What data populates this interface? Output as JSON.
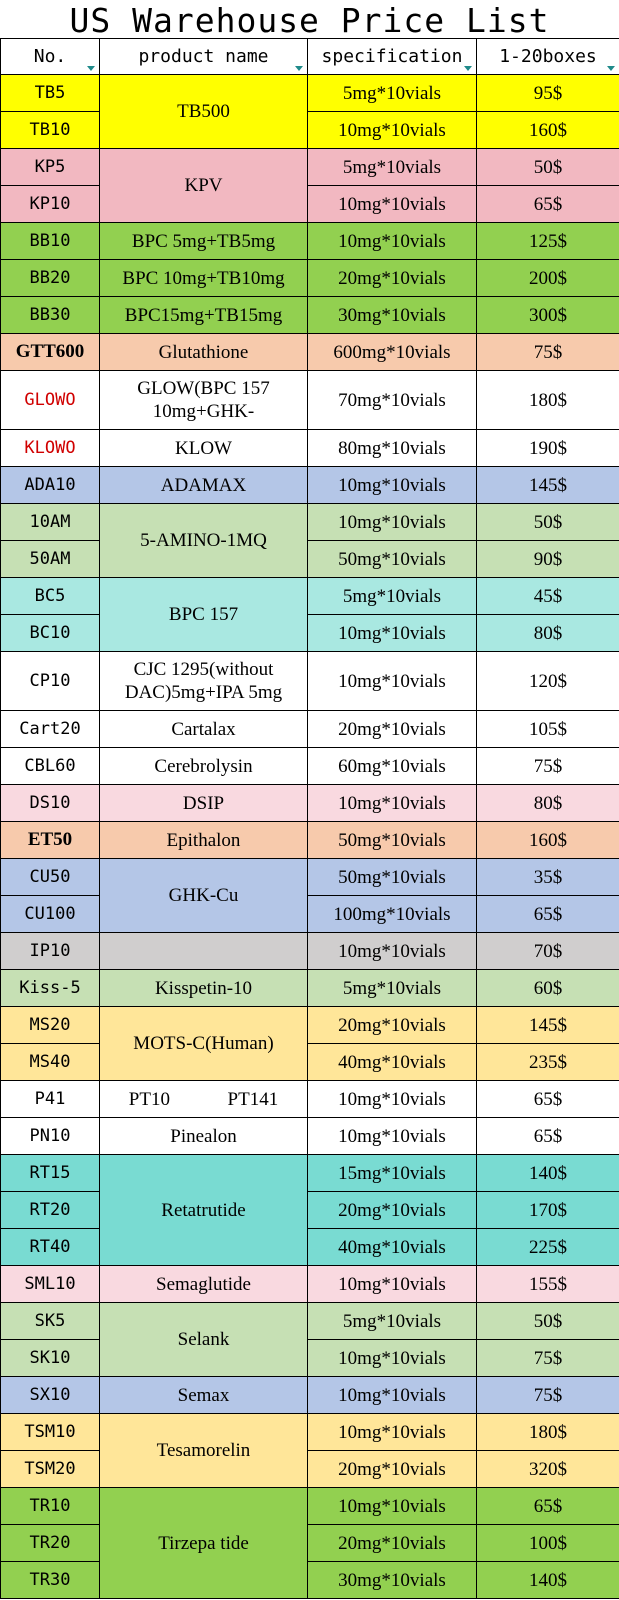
{
  "title": "US Warehouse Price List",
  "headers": {
    "no": "No.",
    "product": "product name",
    "spec": "specification",
    "price": "1-20boxes"
  },
  "colors": {
    "yellow": "#ffff00",
    "pink": "#f2b8c1",
    "green": "#92d050",
    "peach": "#f7caac",
    "white": "#ffffff",
    "blue": "#b4c6e7",
    "lightgreen": "#c6e0b4",
    "cyan": "#a9e8e1",
    "lightpink": "#f9d9e0",
    "gray": "#d0cece",
    "gold": "#ffe699",
    "teal": "#79dbd2",
    "red_text": "#d00000"
  },
  "rows": [
    {
      "no": "TB5",
      "product": "TB500",
      "spec": "5mg*10vials",
      "price": "95$"
    },
    {
      "no": "TB10",
      "spec": "10mg*10vials",
      "price": "160$"
    },
    {
      "no": "KP5",
      "product": "KPV",
      "spec": "5mg*10vials",
      "price": "50$"
    },
    {
      "no": "KP10",
      "spec": "10mg*10vials",
      "price": "65$"
    },
    {
      "no": "BB10",
      "product": "BPC 5mg+TB5mg",
      "spec": "10mg*10vials",
      "price": "125$"
    },
    {
      "no": "BB20",
      "product": "BPC 10mg+TB10mg",
      "spec": "20mg*10vials",
      "price": "200$"
    },
    {
      "no": "BB30",
      "product": "BPC15mg+TB15mg",
      "spec": "30mg*10vials",
      "price": "300$"
    },
    {
      "no": "GTT600",
      "product": "Glutathione",
      "spec": "600mg*10vials",
      "price": "75$"
    },
    {
      "no": "GLOWO",
      "product": "GLOW(BPC 157 10mg+GHK-",
      "spec": "70mg*10vials",
      "price": "180$"
    },
    {
      "no": "KLOWO",
      "product": "KLOW",
      "spec": "80mg*10vials",
      "price": "190$"
    },
    {
      "no": "ADA10",
      "product": "ADAMAX",
      "spec": "10mg*10vials",
      "price": "145$"
    },
    {
      "no": "10AM",
      "product": "5-AMINO-1MQ",
      "spec": "10mg*10vials",
      "price": "50$"
    },
    {
      "no": "50AM",
      "spec": "50mg*10vials",
      "price": "90$"
    },
    {
      "no": "BC5",
      "product": "BPC 157",
      "spec": "5mg*10vials",
      "price": "45$"
    },
    {
      "no": "BC10",
      "spec": "10mg*10vials",
      "price": "80$"
    },
    {
      "no": "CP10",
      "product": "CJC 1295(without DAC)5mg+IPA 5mg",
      "spec": "10mg*10vials",
      "price": "120$"
    },
    {
      "no": "Cart20",
      "product": "Cartalax",
      "spec": "20mg*10vials",
      "price": "105$"
    },
    {
      "no": "CBL60",
      "product": "Cerebrolysin",
      "spec": "60mg*10vials",
      "price": "75$"
    },
    {
      "no": "DS10",
      "product": "DSIP",
      "spec": "10mg*10vials",
      "price": "80$"
    },
    {
      "no": "ET50",
      "product": "Epithalon",
      "spec": "50mg*10vials",
      "price": "160$"
    },
    {
      "no": "CU50",
      "product": "GHK-Cu",
      "spec": "50mg*10vials",
      "price": "35$"
    },
    {
      "no": "CU100",
      "spec": "100mg*10vials",
      "price": "65$"
    },
    {
      "no": "IP10",
      "product": "",
      "spec": "10mg*10vials",
      "price": "70$"
    },
    {
      "no": "Kiss-5",
      "product": "Kisspetin-10",
      "spec": "5mg*10vials",
      "price": "60$"
    },
    {
      "no": "MS20",
      "product": "MOTS-C(Human)",
      "spec": "20mg*10vials",
      "price": "145$"
    },
    {
      "no": "MS40",
      "spec": "40mg*10vials",
      "price": "235$"
    },
    {
      "no": "P41",
      "product_a": "PT10",
      "product_b": "PT141",
      "spec": "10mg*10vials",
      "price": "65$"
    },
    {
      "no": "PN10",
      "product": "Pinealon",
      "spec": "10mg*10vials",
      "price": "65$"
    },
    {
      "no": "RT15",
      "product": "Retatrutide",
      "spec": "15mg*10vials",
      "price": "140$"
    },
    {
      "no": "RT20",
      "spec": "20mg*10vials",
      "price": "170$"
    },
    {
      "no": "RT40",
      "spec": "40mg*10vials",
      "price": "225$"
    },
    {
      "no": "SML10",
      "product": "Semaglutide",
      "spec": "10mg*10vials",
      "price": "155$"
    },
    {
      "no": "SK5",
      "product": "Selank",
      "spec": "5mg*10vials",
      "price": "50$"
    },
    {
      "no": "SK10",
      "spec": "10mg*10vials",
      "price": "75$"
    },
    {
      "no": "SX10",
      "product": "Semax",
      "spec": "10mg*10vials",
      "price": "75$"
    },
    {
      "no": "TSM10",
      "product": "Tesamorelin",
      "spec": "10mg*10vials",
      "price": "180$"
    },
    {
      "no": "TSM20",
      "spec": "20mg*10vials",
      "price": "320$"
    },
    {
      "no": "TR10",
      "product": "Tirzepa tide",
      "spec": "10mg*10vials",
      "price": "65$"
    },
    {
      "no": "TR20",
      "spec": "20mg*10vials",
      "price": "100$"
    },
    {
      "no": "TR30",
      "spec": "30mg*10vials",
      "price": "140$"
    }
  ]
}
